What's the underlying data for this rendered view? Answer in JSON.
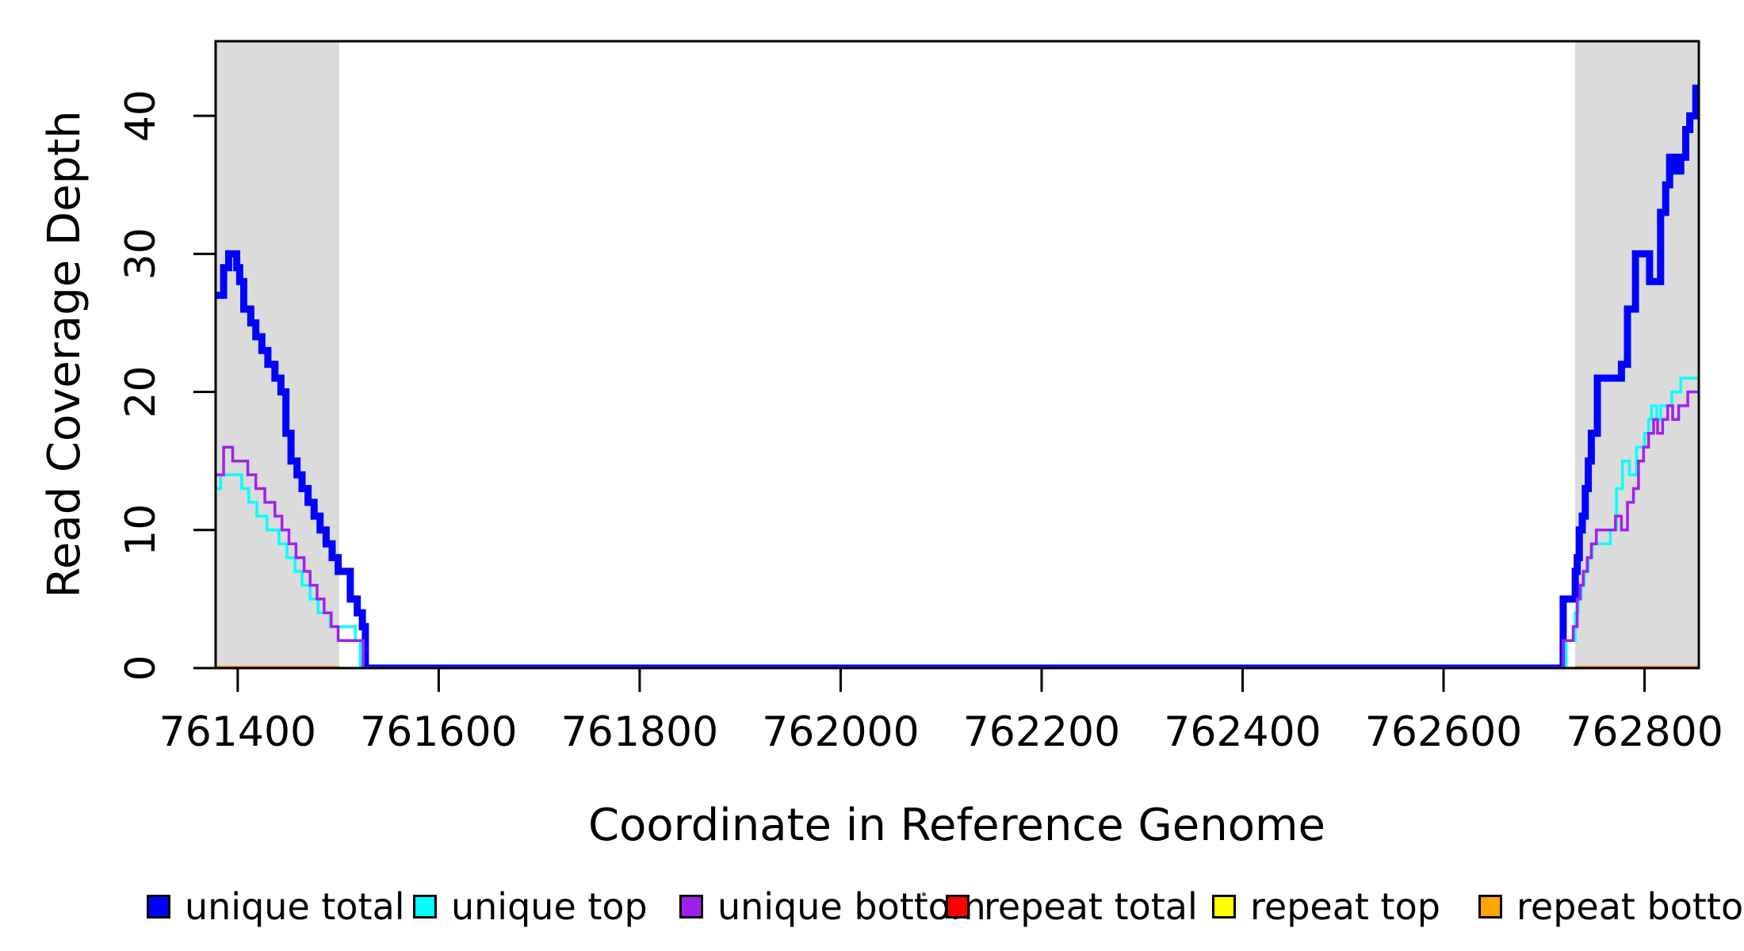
{
  "figure": {
    "background": "#ffffff"
  },
  "chart_data": {
    "type": "line",
    "subtype": "step-after",
    "title": "",
    "xlabel": "Coordinate in Reference Genome",
    "ylabel": "Read Coverage Depth",
    "xlim": [
      761378,
      762854
    ],
    "ylim": [
      0,
      45.4
    ],
    "x_ticks": [
      761400,
      761600,
      761800,
      762000,
      762200,
      762400,
      762600,
      762800
    ],
    "y_ticks": [
      0,
      10,
      20,
      30,
      40
    ],
    "grid": false,
    "legend_position": "bottom-horizontal",
    "shaded_regions": [
      {
        "name": "repeat-region-left",
        "x0": 761378,
        "x1": 761501,
        "color": "#DBDBDB"
      },
      {
        "name": "repeat-region-right",
        "x0": 762731,
        "x1": 762854,
        "color": "#DBDBDB"
      }
    ],
    "series": [
      {
        "name": "repeat total",
        "color": "#FF0000",
        "width": 3.5,
        "segments": [
          [
            [
              761378,
              0
            ],
            [
              761501,
              0
            ]
          ],
          [
            [
              762731,
              0
            ],
            [
              762854,
              0
            ]
          ]
        ]
      },
      {
        "name": "repeat top",
        "color": "#FFFF00",
        "width": 3.5,
        "segments": [
          [
            [
              761378,
              0
            ],
            [
              761501,
              0
            ]
          ],
          [
            [
              762731,
              0
            ],
            [
              762854,
              0
            ]
          ]
        ]
      },
      {
        "name": "repeat bottom",
        "color": "#FFA500",
        "width": 6,
        "segments": [
          [
            [
              761378,
              0
            ],
            [
              761501,
              0
            ]
          ],
          [
            [
              762731,
              0
            ],
            [
              762854,
              0
            ]
          ]
        ]
      },
      {
        "name": "unique total",
        "color": "#0000FF",
        "width": 9,
        "segments": [
          [
            [
              761378,
              27
            ],
            [
              761386,
              29
            ],
            [
              761391,
              30
            ],
            [
              761399,
              29
            ],
            [
              761402,
              28
            ],
            [
              761406,
              26
            ],
            [
              761413,
              25
            ],
            [
              761418,
              24
            ],
            [
              761424,
              23
            ],
            [
              761430,
              22
            ],
            [
              761437,
              21
            ],
            [
              761443,
              20
            ],
            [
              761448,
              17
            ],
            [
              761453,
              15
            ],
            [
              761459,
              14
            ],
            [
              761464,
              13
            ],
            [
              761470,
              12
            ],
            [
              761476,
              11
            ],
            [
              761482,
              10
            ],
            [
              761488,
              9
            ],
            [
              761494,
              8
            ],
            [
              761500,
              7
            ],
            [
              761512,
              5
            ],
            [
              761519,
              4
            ],
            [
              761524,
              3
            ],
            [
              761527,
              0
            ],
            [
              762719,
              5
            ],
            [
              762731,
              7
            ],
            [
              762733,
              8
            ],
            [
              762735,
              10
            ],
            [
              762738,
              11
            ],
            [
              762741,
              13
            ],
            [
              762744,
              15
            ],
            [
              762747,
              17
            ],
            [
              762753,
              21
            ],
            [
              762777,
              22
            ],
            [
              762783,
              26
            ],
            [
              762791,
              30
            ],
            [
              762805,
              28
            ],
            [
              762816,
              33
            ],
            [
              762821,
              35
            ],
            [
              762825,
              37
            ],
            [
              762830,
              36
            ],
            [
              762836,
              37
            ],
            [
              762841,
              39
            ],
            [
              762845,
              40
            ],
            [
              762851,
              42
            ],
            [
              762854,
              42
            ]
          ]
        ]
      },
      {
        "name": "unique top",
        "color": "#00FFFF",
        "width": 3.5,
        "segments": [
          [
            [
              761378,
              13
            ],
            [
              761383,
              14
            ],
            [
              761404,
              13
            ],
            [
              761411,
              12
            ],
            [
              761419,
              11
            ],
            [
              761429,
              10
            ],
            [
              761441,
              9
            ],
            [
              761449,
              8
            ],
            [
              761457,
              7
            ],
            [
              761464,
              6
            ],
            [
              761472,
              5
            ],
            [
              761480,
              4
            ],
            [
              761492,
              3
            ],
            [
              761517,
              2
            ],
            [
              761522,
              0
            ],
            [
              762722,
              2
            ],
            [
              762731,
              4
            ],
            [
              762734,
              5
            ],
            [
              762737,
              6
            ],
            [
              762740,
              7
            ],
            [
              762744,
              8
            ],
            [
              762748,
              9
            ],
            [
              762766,
              10
            ],
            [
              762772,
              13
            ],
            [
              762778,
              15
            ],
            [
              762785,
              14
            ],
            [
              762792,
              16
            ],
            [
              762800,
              17
            ],
            [
              762804,
              18
            ],
            [
              762807,
              19
            ],
            [
              762812,
              18
            ],
            [
              762816,
              19
            ],
            [
              762827,
              20
            ],
            [
              762836,
              21
            ],
            [
              762854,
              21
            ]
          ]
        ]
      },
      {
        "name": "unique bottom",
        "color": "#A020F0",
        "width": 3.5,
        "segments": [
          [
            [
              761378,
              14
            ],
            [
              761386,
              16
            ],
            [
              761395,
              15
            ],
            [
              761410,
              14
            ],
            [
              761418,
              13
            ],
            [
              761427,
              12
            ],
            [
              761437,
              11
            ],
            [
              761444,
              10
            ],
            [
              761451,
              9
            ],
            [
              761458,
              8
            ],
            [
              761466,
              7
            ],
            [
              761472,
              6
            ],
            [
              761479,
              5
            ],
            [
              761486,
              4
            ],
            [
              761493,
              3
            ],
            [
              761500,
              2
            ],
            [
              761525,
              0
            ],
            [
              762719,
              2
            ],
            [
              762729,
              3
            ],
            [
              762733,
              5
            ],
            [
              762736,
              6
            ],
            [
              762739,
              7
            ],
            [
              762743,
              8
            ],
            [
              762747,
              9
            ],
            [
              762752,
              10
            ],
            [
              762771,
              11
            ],
            [
              762777,
              10
            ],
            [
              762783,
              12
            ],
            [
              762789,
              13
            ],
            [
              762794,
              15
            ],
            [
              762799,
              16
            ],
            [
              762804,
              17
            ],
            [
              762809,
              18
            ],
            [
              762813,
              17
            ],
            [
              762818,
              18
            ],
            [
              762823,
              19
            ],
            [
              762828,
              18
            ],
            [
              762834,
              19
            ],
            [
              762843,
              20
            ],
            [
              762854,
              20
            ]
          ]
        ]
      }
    ],
    "legend": {
      "entries": [
        {
          "label": "unique total",
          "color": "#0000FF"
        },
        {
          "label": "unique top",
          "color": "#00FFFF"
        },
        {
          "label": "unique bottom",
          "color": "#A020F0"
        },
        {
          "label": "repeat total",
          "color": "#FF0000"
        },
        {
          "label": "repeat top",
          "color": "#FFFF00"
        },
        {
          "label": "repeat bottom",
          "color": "#FFA500"
        }
      ]
    }
  }
}
